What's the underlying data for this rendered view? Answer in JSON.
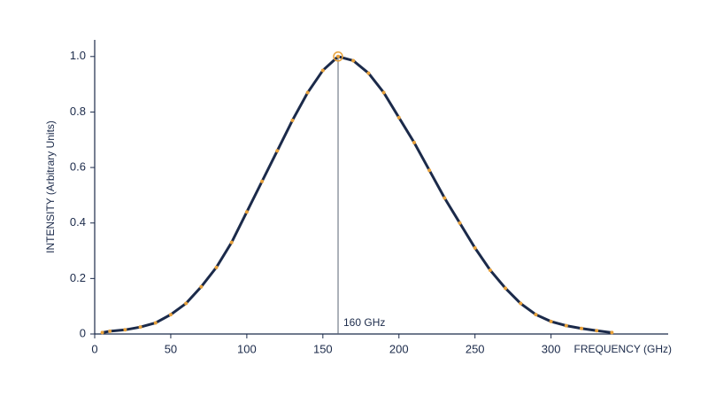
{
  "chart_data": {
    "type": "line",
    "x_label": "FREQUENCY (GHz)",
    "y_label": "INTENSITY (Arbitrary Units)",
    "x": [
      5,
      10,
      20,
      30,
      40,
      50,
      60,
      70,
      80,
      90,
      100,
      110,
      120,
      130,
      140,
      150,
      160,
      170,
      180,
      190,
      200,
      210,
      220,
      230,
      240,
      250,
      260,
      270,
      280,
      290,
      300,
      310,
      320,
      330,
      340
    ],
    "series": [
      {
        "color": "#1b2a4a",
        "marker_color": "#e8a13a",
        "values": [
          0.005,
          0.01,
          0.015,
          0.025,
          0.04,
          0.07,
          0.11,
          0.17,
          0.24,
          0.33,
          0.44,
          0.55,
          0.66,
          0.77,
          0.87,
          0.95,
          1.0,
          0.985,
          0.94,
          0.87,
          0.78,
          0.69,
          0.59,
          0.49,
          0.4,
          0.31,
          0.23,
          0.165,
          0.11,
          0.07,
          0.045,
          0.03,
          0.02,
          0.012,
          0.005
        ]
      }
    ],
    "xlim": [
      0,
      377
    ],
    "xticks": [
      0,
      50,
      100,
      150,
      200,
      250,
      300
    ],
    "ylim": [
      0,
      1.06
    ],
    "yticks": [
      0,
      0.2,
      0.4,
      0.6,
      0.8,
      {
        "value": 1,
        "label": "1.0"
      }
    ],
    "annotation": {
      "text": "160 GHz",
      "x": 160,
      "y": 1
    }
  }
}
